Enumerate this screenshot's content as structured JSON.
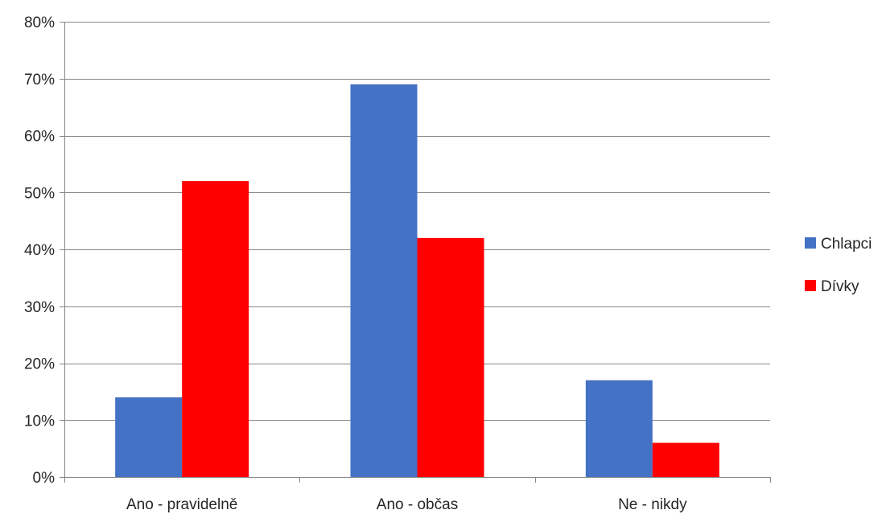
{
  "chart_data": {
    "type": "bar",
    "title": "",
    "xlabel": "",
    "ylabel": "",
    "categories": [
      "Ano - pravidelně",
      "Ano - občas",
      "Ne - nikdy"
    ],
    "series": [
      {
        "name": "Chlapci",
        "values": [
          14,
          69,
          17
        ],
        "color": "#4472C4"
      },
      {
        "name": "Dívky",
        "values": [
          52,
          42,
          6
        ],
        "color": "#FF0000"
      }
    ],
    "ylim": [
      0,
      80
    ],
    "yticks": [
      0,
      10,
      20,
      30,
      40,
      50,
      60,
      70,
      80
    ],
    "ytick_labels": [
      "0%",
      "10%",
      "20%",
      "30%",
      "40%",
      "50%",
      "60%",
      "70%",
      "80%"
    ],
    "value_format": "percent",
    "grid": true,
    "legend": {
      "placement": "right"
    }
  }
}
